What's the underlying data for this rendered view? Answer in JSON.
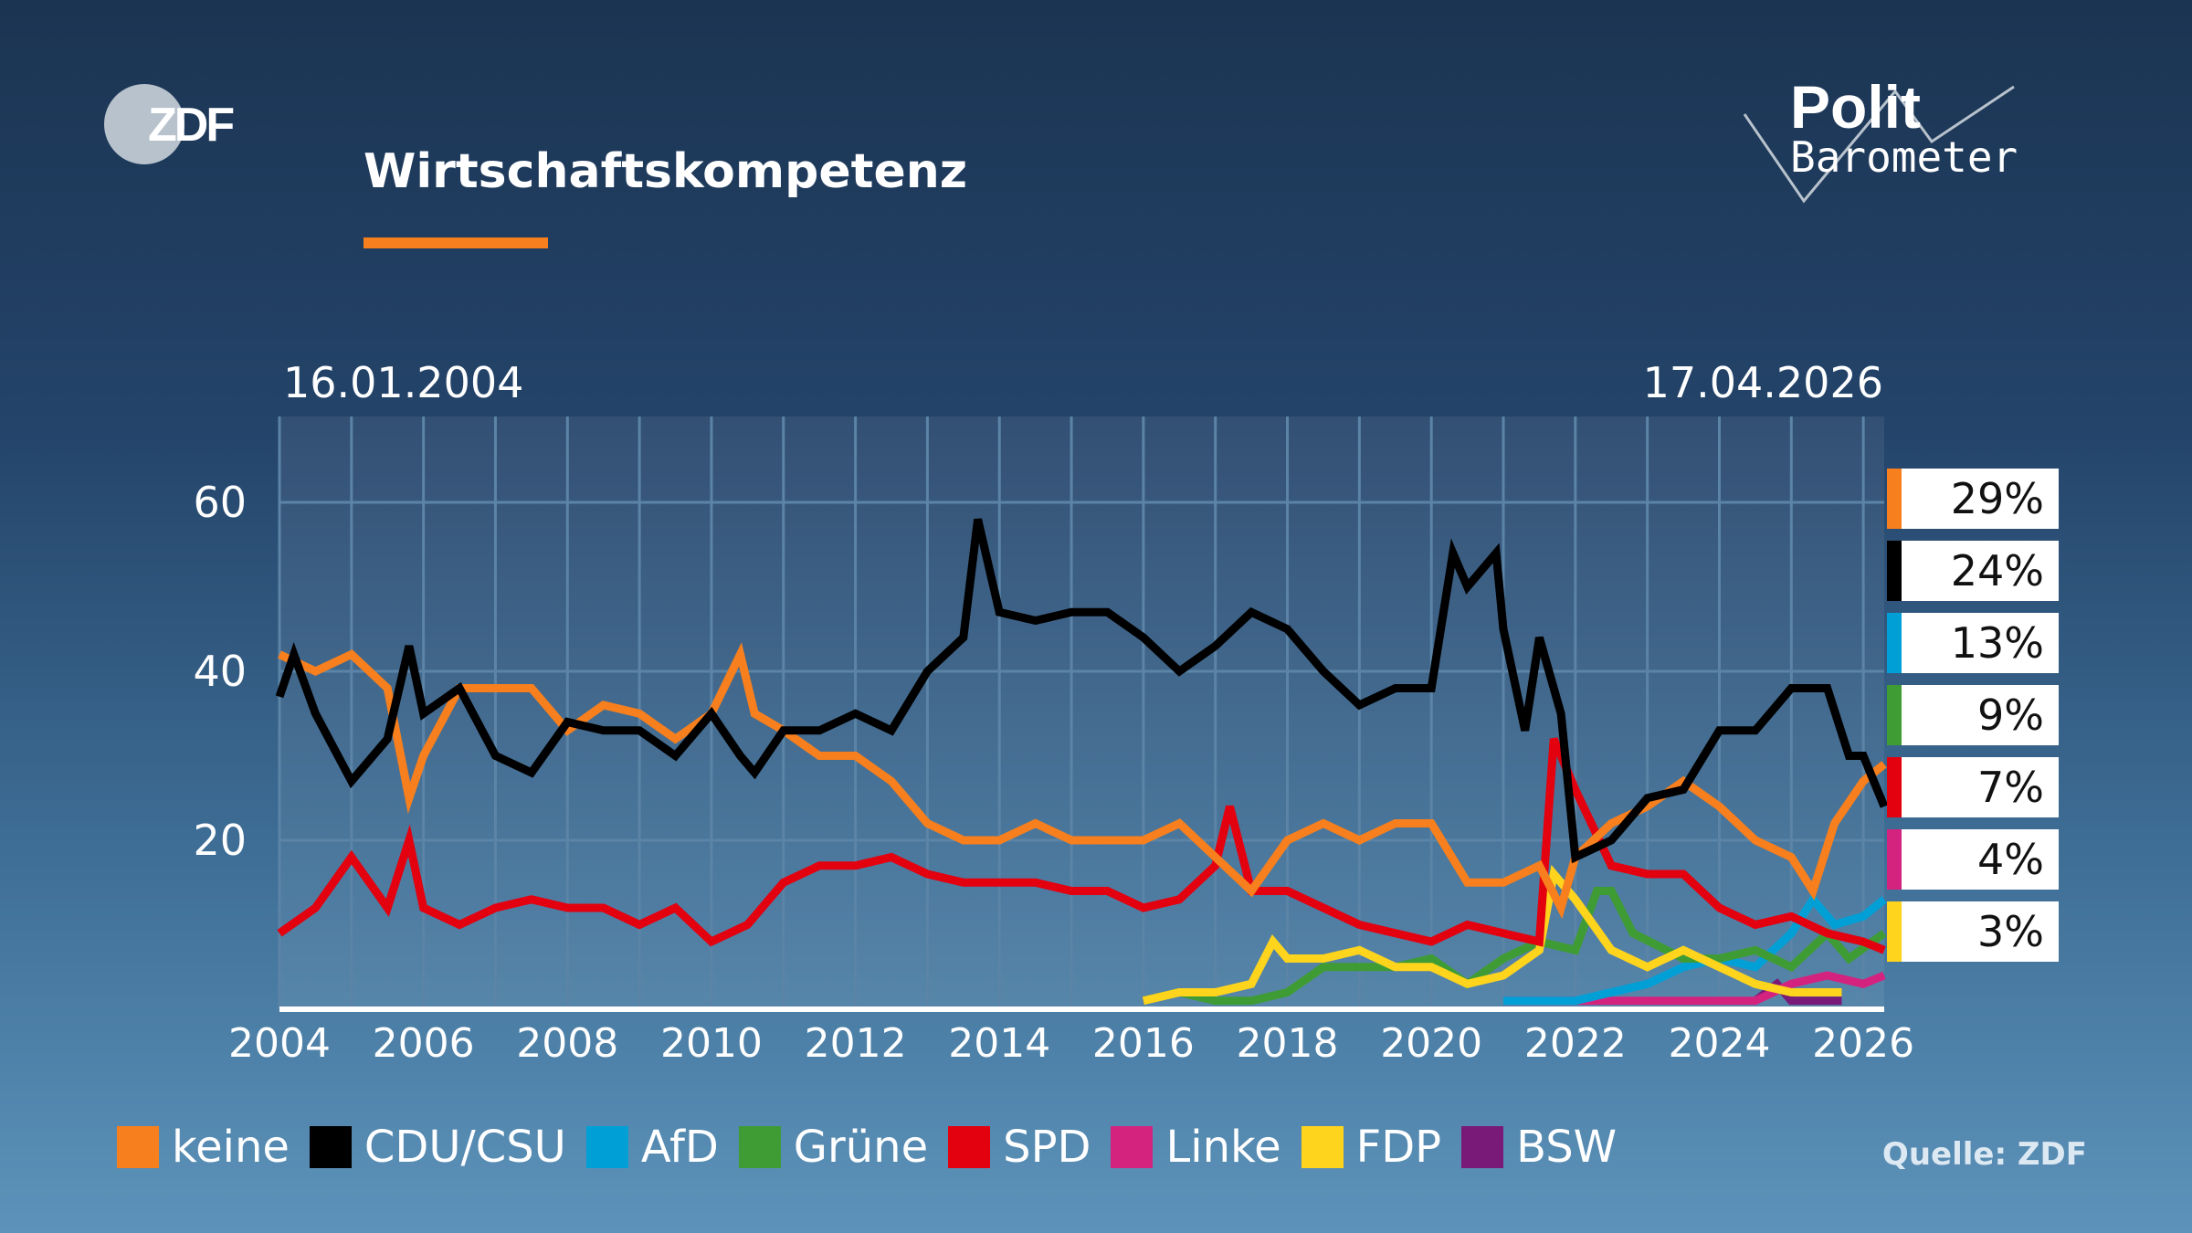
{
  "header": {
    "title": "Wirtschaftskompetenz",
    "accent_color": "#f77f1d",
    "logo_left": "ZDF",
    "logo_right_line1": "Polit",
    "logo_right_line2": "Barometer"
  },
  "source": "Quelle: ZDF",
  "chart_data": {
    "type": "line",
    "title": "Wirtschaftskompetenz",
    "date_start": "16.01.2004",
    "date_end": "17.04.2026",
    "xlim": [
      2004,
      2026.29
    ],
    "ylim": [
      0,
      70
    ],
    "x_ticks": [
      "2004",
      "2006",
      "2008",
      "2010",
      "2012",
      "2014",
      "2016",
      "2018",
      "2020",
      "2022",
      "2024",
      "2026"
    ],
    "y_ticks": [
      "20",
      "40",
      "60"
    ],
    "grid": true,
    "legend_placement": "bottom",
    "series": [
      {
        "name": "keine",
        "color": "#f77f1d",
        "latest": "29%",
        "points": [
          [
            2004,
            42
          ],
          [
            2004.5,
            40
          ],
          [
            2005,
            42
          ],
          [
            2005.5,
            38
          ],
          [
            2005.8,
            25
          ],
          [
            2006,
            30
          ],
          [
            2006.5,
            38
          ],
          [
            2007,
            38
          ],
          [
            2007.5,
            38
          ],
          [
            2008,
            33
          ],
          [
            2008.5,
            36
          ],
          [
            2009,
            35
          ],
          [
            2009.5,
            32
          ],
          [
            2010,
            35
          ],
          [
            2010.4,
            42
          ],
          [
            2010.6,
            35
          ],
          [
            2011,
            33
          ],
          [
            2011.5,
            30
          ],
          [
            2012,
            30
          ],
          [
            2012.5,
            27
          ],
          [
            2013,
            22
          ],
          [
            2013.5,
            20
          ],
          [
            2014,
            20
          ],
          [
            2014.5,
            22
          ],
          [
            2015,
            20
          ],
          [
            2015.5,
            20
          ],
          [
            2016,
            20
          ],
          [
            2016.5,
            22
          ],
          [
            2017,
            18
          ],
          [
            2017.5,
            14
          ],
          [
            2018,
            20
          ],
          [
            2018.5,
            22
          ],
          [
            2019,
            20
          ],
          [
            2019.5,
            22
          ],
          [
            2020,
            22
          ],
          [
            2020.5,
            15
          ],
          [
            2021,
            15
          ],
          [
            2021.5,
            17
          ],
          [
            2021.8,
            12
          ],
          [
            2022,
            18
          ],
          [
            2022.5,
            22
          ],
          [
            2023,
            24
          ],
          [
            2023.5,
            27
          ],
          [
            2024,
            24
          ],
          [
            2024.5,
            20
          ],
          [
            2025,
            18
          ],
          [
            2025.3,
            14
          ],
          [
            2025.6,
            22
          ],
          [
            2026,
            27
          ],
          [
            2026.29,
            29
          ]
        ]
      },
      {
        "name": "CDU/CSU",
        "color": "#000000",
        "latest": "24%",
        "points": [
          [
            2004,
            37
          ],
          [
            2004.2,
            42
          ],
          [
            2004.5,
            35
          ],
          [
            2005,
            27
          ],
          [
            2005.5,
            32
          ],
          [
            2005.8,
            43
          ],
          [
            2006,
            35
          ],
          [
            2006.5,
            38
          ],
          [
            2007,
            30
          ],
          [
            2007.5,
            28
          ],
          [
            2008,
            34
          ],
          [
            2008.5,
            33
          ],
          [
            2009,
            33
          ],
          [
            2009.5,
            30
          ],
          [
            2010,
            35
          ],
          [
            2010.4,
            30
          ],
          [
            2010.6,
            28
          ],
          [
            2011,
            33
          ],
          [
            2011.5,
            33
          ],
          [
            2012,
            35
          ],
          [
            2012.5,
            33
          ],
          [
            2013,
            40
          ],
          [
            2013.5,
            44
          ],
          [
            2013.7,
            58
          ],
          [
            2014,
            47
          ],
          [
            2014.5,
            46
          ],
          [
            2015,
            47
          ],
          [
            2015.5,
            47
          ],
          [
            2016,
            44
          ],
          [
            2016.5,
            40
          ],
          [
            2017,
            43
          ],
          [
            2017.5,
            47
          ],
          [
            2018,
            45
          ],
          [
            2018.5,
            40
          ],
          [
            2019,
            36
          ],
          [
            2019.5,
            38
          ],
          [
            2020,
            38
          ],
          [
            2020.3,
            54
          ],
          [
            2020.5,
            50
          ],
          [
            2020.9,
            54
          ],
          [
            2021,
            45
          ],
          [
            2021.3,
            33
          ],
          [
            2021.5,
            44
          ],
          [
            2021.8,
            35
          ],
          [
            2022,
            18
          ],
          [
            2022.5,
            20
          ],
          [
            2023,
            25
          ],
          [
            2023.5,
            26
          ],
          [
            2024,
            33
          ],
          [
            2024.5,
            33
          ],
          [
            2025,
            38
          ],
          [
            2025.5,
            38
          ],
          [
            2025.8,
            30
          ],
          [
            2026,
            30
          ],
          [
            2026.29,
            24
          ]
        ]
      },
      {
        "name": "AfD",
        "color": "#00a0d7",
        "latest": "13%",
        "points": [
          [
            2021,
            1
          ],
          [
            2021.5,
            1
          ],
          [
            2022,
            1
          ],
          [
            2022.5,
            2
          ],
          [
            2023,
            3
          ],
          [
            2023.5,
            5
          ],
          [
            2024,
            6
          ],
          [
            2024.5,
            5
          ],
          [
            2025,
            9
          ],
          [
            2025.3,
            13
          ],
          [
            2025.6,
            10
          ],
          [
            2026,
            11
          ],
          [
            2026.29,
            13
          ]
        ]
      },
      {
        "name": "Grüne",
        "color": "#3f9c35",
        "latest": "9%",
        "points": [
          [
            2016,
            1
          ],
          [
            2016.5,
            2
          ],
          [
            2017,
            1
          ],
          [
            2017.5,
            1
          ],
          [
            2018,
            2
          ],
          [
            2018.5,
            5
          ],
          [
            2019,
            5
          ],
          [
            2019.5,
            5
          ],
          [
            2020,
            6
          ],
          [
            2020.5,
            3
          ],
          [
            2021,
            6
          ],
          [
            2021.5,
            8
          ],
          [
            2022,
            7
          ],
          [
            2022.3,
            14
          ],
          [
            2022.5,
            14
          ],
          [
            2022.8,
            9
          ],
          [
            2023.5,
            6
          ],
          [
            2024,
            6
          ],
          [
            2024.5,
            7
          ],
          [
            2025,
            5
          ],
          [
            2025.5,
            9
          ],
          [
            2025.8,
            6
          ],
          [
            2026.29,
            9
          ]
        ]
      },
      {
        "name": "SPD",
        "color": "#e3000f",
        "latest": "7%",
        "points": [
          [
            2004,
            9
          ],
          [
            2004.5,
            12
          ],
          [
            2005,
            18
          ],
          [
            2005.5,
            12
          ],
          [
            2005.8,
            20
          ],
          [
            2006,
            12
          ],
          [
            2006.5,
            10
          ],
          [
            2007,
            12
          ],
          [
            2007.5,
            13
          ],
          [
            2008,
            12
          ],
          [
            2008.5,
            12
          ],
          [
            2009,
            10
          ],
          [
            2009.5,
            12
          ],
          [
            2010,
            8
          ],
          [
            2010.5,
            10
          ],
          [
            2011,
            15
          ],
          [
            2011.5,
            17
          ],
          [
            2012,
            17
          ],
          [
            2012.5,
            18
          ],
          [
            2013,
            16
          ],
          [
            2013.5,
            15
          ],
          [
            2014,
            15
          ],
          [
            2014.5,
            15
          ],
          [
            2015,
            14
          ],
          [
            2015.5,
            14
          ],
          [
            2016,
            12
          ],
          [
            2016.5,
            13
          ],
          [
            2017,
            17
          ],
          [
            2017.2,
            24
          ],
          [
            2017.5,
            14
          ],
          [
            2018,
            14
          ],
          [
            2018.5,
            12
          ],
          [
            2019,
            10
          ],
          [
            2019.5,
            9
          ],
          [
            2020,
            8
          ],
          [
            2020.5,
            10
          ],
          [
            2021,
            9
          ],
          [
            2021.5,
            8
          ],
          [
            2021.7,
            32
          ],
          [
            2022,
            26
          ],
          [
            2022.5,
            17
          ],
          [
            2023,
            16
          ],
          [
            2023.5,
            16
          ],
          [
            2024,
            12
          ],
          [
            2024.5,
            10
          ],
          [
            2025,
            11
          ],
          [
            2025.5,
            9
          ],
          [
            2026,
            8
          ],
          [
            2026.29,
            7
          ]
        ]
      },
      {
        "name": "Linke",
        "color": "#d3237f",
        "latest": "4%",
        "points": [
          [
            2021,
            1
          ],
          [
            2022,
            1
          ],
          [
            2023,
            1
          ],
          [
            2024,
            1
          ],
          [
            2024.5,
            1
          ],
          [
            2025,
            3
          ],
          [
            2025.5,
            4
          ],
          [
            2026,
            3
          ],
          [
            2026.29,
            4
          ]
        ]
      },
      {
        "name": "FDP",
        "color": "#ffd41c",
        "latest": "3%",
        "points": [
          [
            2016,
            1
          ],
          [
            2016.5,
            2
          ],
          [
            2017,
            2
          ],
          [
            2017.5,
            3
          ],
          [
            2017.8,
            8
          ],
          [
            2018,
            6
          ],
          [
            2018.5,
            6
          ],
          [
            2019,
            7
          ],
          [
            2019.5,
            5
          ],
          [
            2020,
            5
          ],
          [
            2020.5,
            3
          ],
          [
            2021,
            4
          ],
          [
            2021.5,
            7
          ],
          [
            2021.7,
            16
          ],
          [
            2022,
            13
          ],
          [
            2022.5,
            7
          ],
          [
            2023,
            5
          ],
          [
            2023.5,
            7
          ],
          [
            2024,
            5
          ],
          [
            2024.5,
            3
          ],
          [
            2025,
            2
          ],
          [
            2025.5,
            2
          ],
          [
            2025.7,
            2
          ]
        ]
      },
      {
        "name": "BSW",
        "color": "#7a1a78",
        "latest": "",
        "points": [
          [
            2024.5,
            1
          ],
          [
            2024.8,
            3
          ],
          [
            2025,
            1
          ],
          [
            2025.5,
            1
          ],
          [
            2025.7,
            1
          ]
        ]
      }
    ],
    "latest_labels_order": [
      "keine",
      "CDU/CSU",
      "AfD",
      "Grüne",
      "SPD",
      "Linke",
      "FDP"
    ]
  }
}
